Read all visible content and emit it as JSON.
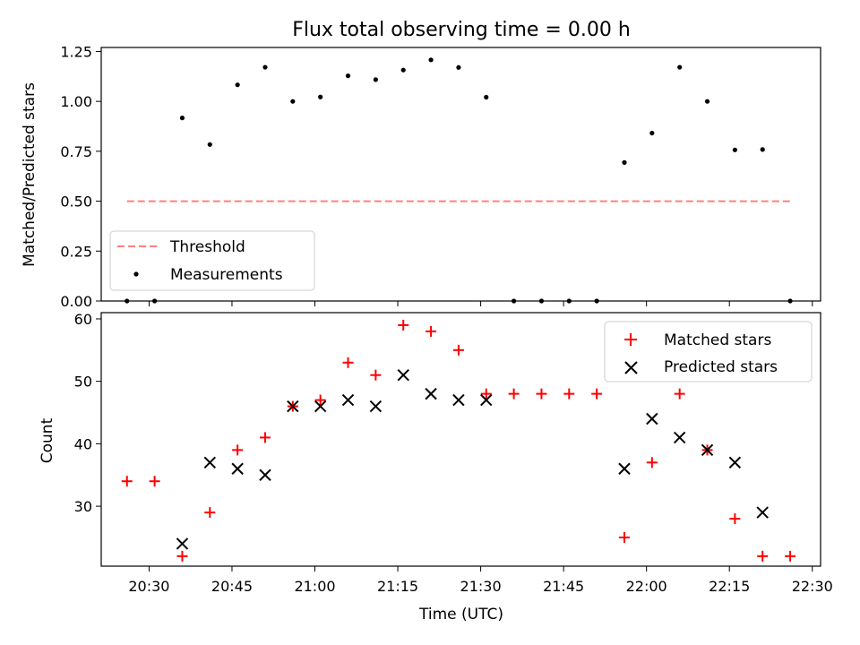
{
  "chart_data": [
    {
      "type": "scatter",
      "title": "Flux total observing time = 0.00 h",
      "ylabel": "Matched/Predicted stars",
      "xlabel": "",
      "ylim": [
        0,
        1.27
      ],
      "yticks": [
        "0.00",
        "0.25",
        "0.50",
        "0.75",
        "1.00",
        "1.25"
      ],
      "ytick_values": [
        0,
        0.25,
        0.5,
        0.75,
        1.0,
        1.25
      ],
      "legend_position": "lower-left",
      "threshold": {
        "name": "Threshold",
        "value": 0.5,
        "x_start": "20:26",
        "x_end": "22:26",
        "color": "#ff7f7f"
      },
      "series": [
        {
          "name": "Measurements",
          "color": "#000000",
          "x": [
            "20:26",
            "20:31",
            "20:36",
            "20:41",
            "20:46",
            "20:51",
            "20:56",
            "21:01",
            "21:06",
            "21:11",
            "21:16",
            "21:21",
            "21:26",
            "21:31",
            "21:36",
            "21:41",
            "21:46",
            "21:51",
            "21:56",
            "22:01",
            "22:06",
            "22:11",
            "22:16",
            "22:21",
            "22:26"
          ],
          "y": [
            0,
            0,
            0.917,
            0.784,
            1.083,
            1.171,
            1.0,
            1.022,
            1.128,
            1.109,
            1.157,
            1.208,
            1.17,
            1.021,
            0,
            0,
            0,
            0,
            0.694,
            0.841,
            1.171,
            1.0,
            0.757,
            0.759,
            0
          ]
        }
      ]
    },
    {
      "type": "scatter",
      "title": "",
      "xlabel": "Time (UTC)",
      "ylabel": "Count",
      "ylim": [
        20.4,
        61
      ],
      "yticks": [
        "30",
        "40",
        "50",
        "60"
      ],
      "ytick_values": [
        30,
        40,
        50,
        60
      ],
      "xlim": [
        "20:22",
        "22:31"
      ],
      "xticks": [
        "20:30",
        "20:45",
        "21:00",
        "21:15",
        "21:30",
        "21:45",
        "22:00",
        "22:15",
        "22:30"
      ],
      "legend_position": "upper-right",
      "series": [
        {
          "name": "Matched stars",
          "color": "#ff0000",
          "marker": "+",
          "x": [
            "20:26",
            "20:31",
            "20:36",
            "20:41",
            "20:46",
            "20:51",
            "20:56",
            "21:01",
            "21:06",
            "21:11",
            "21:16",
            "21:21",
            "21:26",
            "21:31",
            "21:36",
            "21:41",
            "21:46",
            "21:51",
            "21:56",
            "22:01",
            "22:06",
            "22:11",
            "22:16",
            "22:21",
            "22:26"
          ],
          "y": [
            34,
            34,
            22,
            29,
            39,
            41,
            46,
            47,
            53,
            51,
            59,
            58,
            55,
            48,
            48,
            48,
            48,
            48,
            25,
            37,
            48,
            39,
            28,
            22,
            22
          ]
        },
        {
          "name": "Predicted stars",
          "color": "#000000",
          "marker": "x",
          "x": [
            "20:36",
            "20:41",
            "20:46",
            "20:51",
            "20:56",
            "21:01",
            "21:06",
            "21:11",
            "21:16",
            "21:21",
            "21:26",
            "21:31",
            "21:56",
            "22:01",
            "22:06",
            "22:11",
            "22:16",
            "22:21"
          ],
          "y": [
            24,
            37,
            36,
            35,
            46,
            46,
            47,
            46,
            51,
            48,
            47,
            47,
            36,
            44,
            41,
            39,
            37,
            29
          ]
        }
      ]
    }
  ]
}
